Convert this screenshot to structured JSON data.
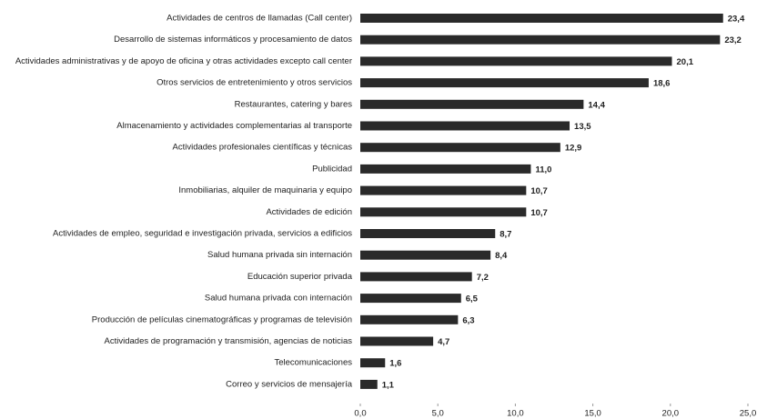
{
  "chart_data": {
    "type": "barh",
    "categories": [
      "Actividades de centros de llamadas (Call center)",
      "Desarrollo de sistemas informáticos y procesamiento de datos",
      "Actividades administrativas y de apoyo de oficina y otras actividades excepto call center",
      "Otros servicios de entretenimiento y otros servicios",
      "Restaurantes, catering y bares",
      "Almacenamiento y actividades complementarias al transporte",
      "Actividades profesionales científicas y técnicas",
      "Publicidad",
      "Inmobiliarias, alquiler de maquinaria y equipo",
      "Actividades de edición",
      "Actividades de empleo, seguridad e investigación privada, servicios a edificios",
      "Salud humana privada sin internación",
      "Educación superior privada",
      "Salud humana privada con internación",
      "Producción de películas cinematográficas y programas de televisión",
      "Actividades de programación y transmisión, agencias de noticias",
      "Telecomunicaciones",
      "Correo y servicios de mensajería"
    ],
    "values": [
      23.4,
      23.2,
      20.1,
      18.6,
      14.4,
      13.5,
      12.9,
      11.0,
      10.7,
      10.7,
      8.7,
      8.4,
      7.2,
      6.5,
      6.3,
      4.7,
      1.6,
      1.1
    ],
    "value_labels": [
      "23,4",
      "23,2",
      "20,1",
      "18,6",
      "14,4",
      "13,5",
      "12,9",
      "11,0",
      "10,7",
      "10,7",
      "8,7",
      "8,4",
      "7,2",
      "6,5",
      "6,3",
      "4,7",
      "1,6",
      "1,1"
    ],
    "color": "#2a2a2a",
    "xlim": [
      0,
      25
    ],
    "xticks": [
      {
        "value": 0,
        "label": "0,0"
      },
      {
        "value": 5,
        "label": "5,0"
      },
      {
        "value": 10,
        "label": "10,0"
      },
      {
        "value": 15,
        "label": "15,0"
      },
      {
        "value": 20,
        "label": "20,0"
      },
      {
        "value": 25,
        "label": "25,0"
      }
    ]
  }
}
